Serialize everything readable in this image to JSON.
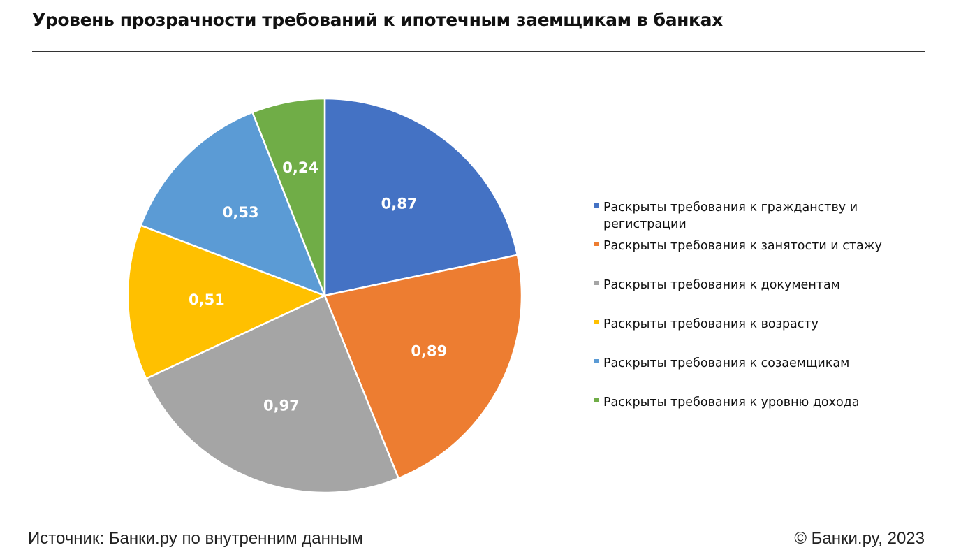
{
  "header": {
    "title": "Уровень прозрачности требований к ипотечным заемщикам в банках"
  },
  "footer": {
    "source": "Источник: Банки.ру по внутренним данным",
    "copyright": "© Банки.ру, 2023"
  },
  "chart_data": {
    "type": "pie",
    "title": "Уровень прозрачности требований к ипотечным заемщикам в банках",
    "legend_position": "right",
    "categories": [
      "Раскрыты требования к гражданству и регистрации",
      "Раскрыты требования к занятости и стажу",
      "Раскрыты требования к документам",
      "Раскрыты требования к возрасту",
      "Раскрыты требования к созаемщикам",
      "Раскрыты требования к уровню дохода"
    ],
    "values": [
      0.87,
      0.89,
      0.97,
      0.51,
      0.53,
      0.24
    ],
    "data_labels": [
      "0,87",
      "0,89",
      "0,97",
      "0,51",
      "0,53",
      "0,24"
    ],
    "colors": [
      "#4472C4",
      "#ED7D31",
      "#A5A5A5",
      "#FFC000",
      "#5B9BD5",
      "#70AD47"
    ]
  }
}
